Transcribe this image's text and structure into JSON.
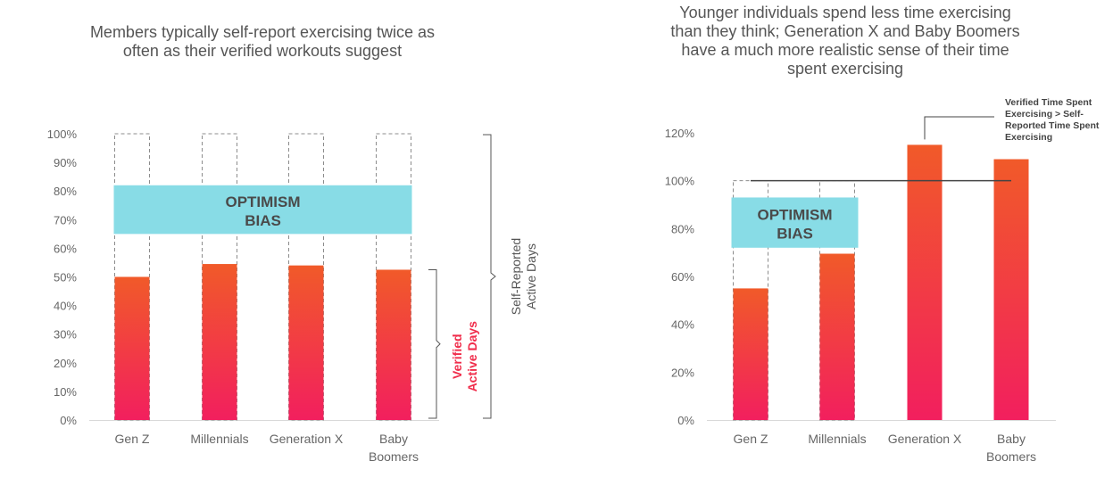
{
  "chart_data": [
    {
      "type": "bar",
      "title_lines": [
        "Members typically self-report exercising twice as",
        "often as their verified workouts suggest"
      ],
      "categories": [
        "Gen Z",
        "Millennials",
        "Generation X",
        [
          "Baby",
          "Boomers"
        ]
      ],
      "yticks": [
        "0%",
        "10%",
        "20%",
        "30%",
        "40%",
        "50%",
        "60%",
        "70%",
        "80%",
        "90%",
        "100%"
      ],
      "ylim": [
        0,
        100
      ],
      "series": [
        {
          "values": [
            50,
            54.5,
            54,
            52.5
          ]
        }
      ],
      "self_reported_outline": [
        100,
        100,
        100,
        100
      ],
      "band": {
        "label_lines": [
          "OPTIMISM",
          "BIAS"
        ],
        "from": 65,
        "to": 82,
        "color": "#88dce6"
      },
      "annotations": {
        "verified_lines": [
          "Verified",
          "Active Days"
        ],
        "self_reported_lines": [
          "Self-Reported",
          "Active Days"
        ]
      },
      "colors": {
        "bar_top": "#f15a29",
        "bar_bottom": "#f21f5e",
        "accent_text": "#f02d4b",
        "text": "#666666"
      }
    },
    {
      "type": "bar",
      "title_lines": [
        "Younger individuals spend less time exercising",
        "than they think; Generation X and Baby Boomers",
        "have a much more realistic sense of their time",
        "spent exercising"
      ],
      "categories": [
        "Gen Z",
        "Millennials",
        "Generation X",
        [
          "Baby",
          "Boomers"
        ]
      ],
      "yticks": [
        "0%",
        "20%",
        "40%",
        "60%",
        "80%",
        "100%",
        "120%"
      ],
      "ylim": [
        0,
        120
      ],
      "series": [
        {
          "values": [
            55,
            69.5,
            115,
            109
          ]
        }
      ],
      "self_reported_outline": [
        100,
        100,
        null,
        null
      ],
      "reference_line": 100,
      "band": {
        "label_lines": [
          "OPTIMISM",
          "BIAS"
        ],
        "from": 72,
        "to": 93,
        "color": "#88dce6"
      },
      "annotations": {
        "callout_lines": [
          "Verified Time Spent",
          "Exercising > Self-",
          "Reported Time Spent",
          "Exercising"
        ]
      },
      "colors": {
        "bar_top": "#f15a29",
        "bar_bottom": "#f21f5e",
        "text": "#666666"
      }
    }
  ]
}
